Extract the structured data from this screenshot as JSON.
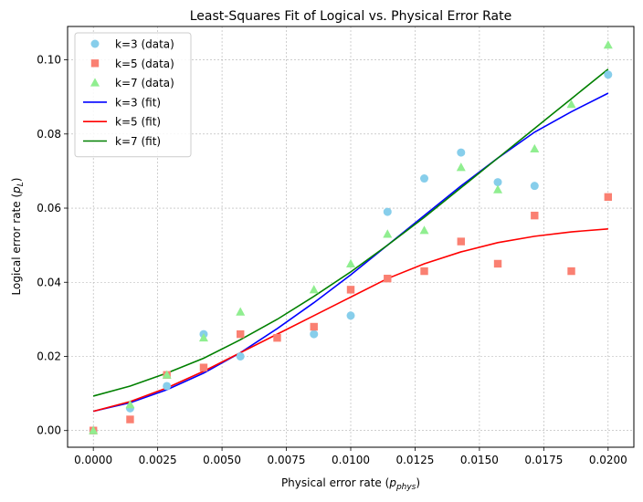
{
  "chart_data": {
    "type": "scatter",
    "title": "Least-Squares Fit of Logical vs. Physical Error Rate",
    "xlabel": "Physical error rate (",
    "xlabel_symbol": "p",
    "xlabel_sub": "phys",
    "xlabel_end": ")",
    "ylabel": "Logical error rate (",
    "ylabel_symbol": "p",
    "ylabel_sub": "L",
    "ylabel_end": ")",
    "xlim": [
      -0.001,
      0.021
    ],
    "ylim": [
      -0.0045,
      0.109
    ],
    "xticks": [
      0.0,
      0.0025,
      0.005,
      0.0075,
      0.01,
      0.0125,
      0.015,
      0.0175,
      0.02
    ],
    "xtick_labels": [
      "0.0000",
      "0.0025",
      "0.0050",
      "0.0075",
      "0.0100",
      "0.0125",
      "0.0150",
      "0.0175",
      "0.0200"
    ],
    "yticks": [
      0.0,
      0.02,
      0.04,
      0.06,
      0.08,
      0.1
    ],
    "ytick_labels": [
      "0.00",
      "0.02",
      "0.04",
      "0.06",
      "0.08",
      "0.10"
    ],
    "grid": true,
    "legend_position": "top-left",
    "x": [
      0.0,
      0.001429,
      0.002857,
      0.004286,
      0.005714,
      0.007143,
      0.008571,
      0.01,
      0.011429,
      0.012857,
      0.014286,
      0.015714,
      0.017143,
      0.018571,
      0.02
    ],
    "series": [
      {
        "name": "k=3 (data)",
        "kind": "points",
        "marker": "circle",
        "color": "#87ceeb",
        "values": [
          0.0,
          0.006,
          0.012,
          0.026,
          0.02,
          null,
          0.026,
          0.031,
          0.059,
          0.068,
          0.075,
          0.067,
          0.066,
          null,
          0.096
        ]
      },
      {
        "name": "k=5 (data)",
        "kind": "points",
        "marker": "square",
        "color": "#fa8072",
        "values": [
          0.0,
          0.003,
          0.015,
          0.017,
          0.026,
          0.025,
          0.028,
          0.038,
          0.041,
          0.043,
          0.051,
          0.045,
          0.058,
          0.043,
          0.063
        ]
      },
      {
        "name": "k=7 (data)",
        "kind": "points",
        "marker": "triangle",
        "color": "#90ee90",
        "values": [
          0.0,
          0.007,
          0.015,
          0.025,
          0.032,
          null,
          0.038,
          0.045,
          0.053,
          0.054,
          0.071,
          0.065,
          0.076,
          0.088,
          0.104
        ]
      },
      {
        "name": "k=3 (fit)",
        "kind": "line",
        "color": "#0000ff",
        "values": [
          0.0052,
          0.0075,
          0.011,
          0.0155,
          0.021,
          0.0275,
          0.0345,
          0.042,
          0.05,
          0.058,
          0.066,
          0.0735,
          0.0805,
          0.086,
          0.091
        ]
      },
      {
        "name": "k=5 (fit)",
        "kind": "line",
        "color": "#ff0000",
        "values": [
          0.0052,
          0.0078,
          0.0115,
          0.016,
          0.021,
          0.026,
          0.031,
          0.036,
          0.041,
          0.045,
          0.0482,
          0.0507,
          0.0524,
          0.0536,
          0.0544
        ]
      },
      {
        "name": "k=7 (fit)",
        "kind": "line",
        "color": "#008000",
        "values": [
          0.0093,
          0.012,
          0.0155,
          0.0195,
          0.0245,
          0.03,
          0.0362,
          0.0428,
          0.05,
          0.0575,
          0.0655,
          0.0735,
          0.0815,
          0.0895,
          0.0975
        ]
      }
    ]
  }
}
